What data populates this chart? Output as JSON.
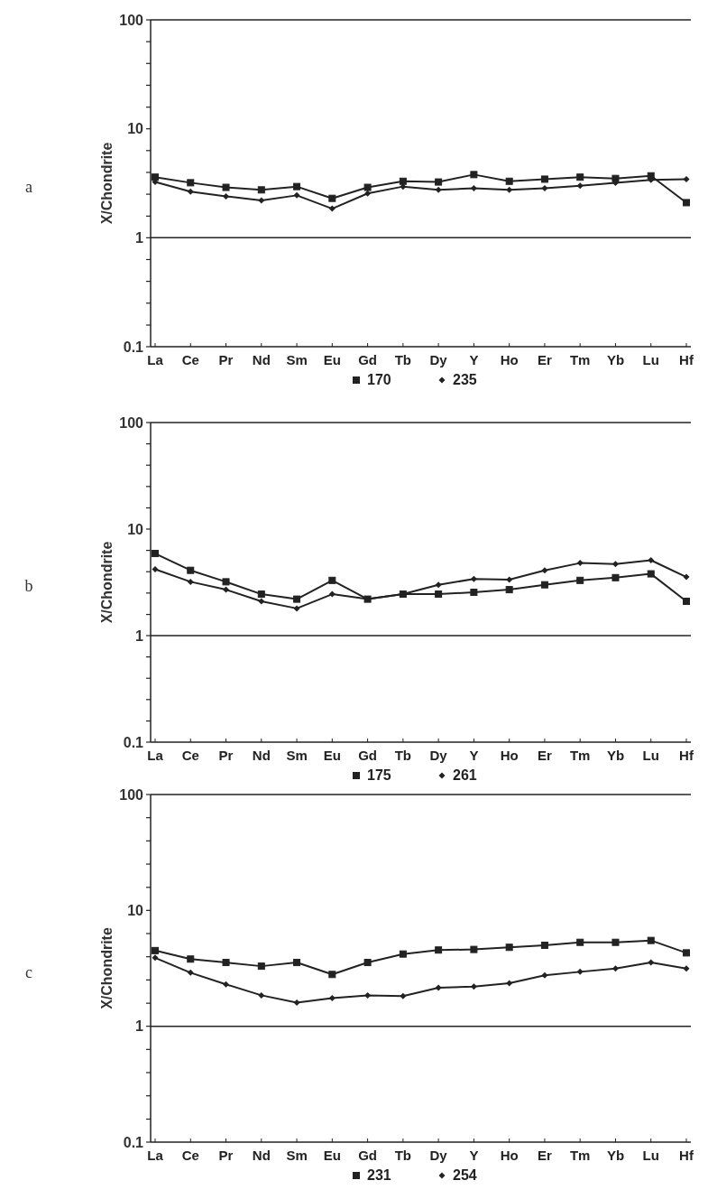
{
  "chart_data": [
    {
      "type": "line",
      "ylabel": "X/Chondrite",
      "annotations": [
        "a"
      ],
      "categories": [
        "La",
        "Ce",
        "Pr",
        "Nd",
        "Sm",
        "Eu",
        "Gd",
        "Tb",
        "Dy",
        "Y",
        "Ho",
        "Er",
        "Tm",
        "Yb",
        "Lu",
        "Hf"
      ],
      "log": true,
      "ylim": [
        0.1,
        100
      ],
      "yticks": [
        0.1,
        {
          "value": 0.158,
          "label": null
        },
        {
          "value": 0.251,
          "label": null
        },
        {
          "value": 0.398,
          "label": null
        },
        {
          "value": 0.631,
          "label": null
        },
        1,
        {
          "value": 1.58,
          "label": null
        },
        {
          "value": 2.51,
          "label": null
        },
        {
          "value": 3.98,
          "label": null
        },
        {
          "value": 6.31,
          "label": null
        },
        10,
        {
          "value": 15.8,
          "label": null
        },
        {
          "value": 25.1,
          "label": null
        },
        {
          "value": 39.8,
          "label": null
        },
        {
          "value": 63.1,
          "label": null
        },
        100
      ],
      "ref_lines": [
        {
          "axis": "y",
          "value": 1
        }
      ],
      "legend": "bottom",
      "series": [
        {
          "name": "170",
          "color": "#222222",
          "marker": "square",
          "values": [
            3.6,
            3.2,
            2.9,
            2.75,
            2.95,
            2.3,
            2.9,
            3.3,
            3.25,
            3.8,
            3.3,
            3.45,
            3.6,
            3.5,
            3.7,
            2.1
          ]
        },
        {
          "name": "235",
          "color": "#222222",
          "marker": "diamond",
          "values": [
            3.25,
            2.65,
            2.4,
            2.2,
            2.45,
            1.85,
            2.55,
            2.95,
            2.75,
            2.85,
            2.75,
            2.85,
            3.0,
            3.2,
            3.4,
            3.45
          ]
        }
      ]
    },
    {
      "type": "line",
      "ylabel": "X/Chondrite",
      "annotations": [
        "b"
      ],
      "categories": [
        "La",
        "Ce",
        "Pr",
        "Nd",
        "Sm",
        "Eu",
        "Gd",
        "Tb",
        "Dy",
        "Y",
        "Ho",
        "Er",
        "Tm",
        "Yb",
        "Lu",
        "Hf"
      ],
      "log": true,
      "ylim": [
        0.1,
        100
      ],
      "yticks": [
        0.1,
        {
          "value": 0.158,
          "label": null
        },
        {
          "value": 0.251,
          "label": null
        },
        {
          "value": 0.398,
          "label": null
        },
        {
          "value": 0.631,
          "label": null
        },
        1,
        {
          "value": 1.58,
          "label": null
        },
        {
          "value": 2.51,
          "label": null
        },
        {
          "value": 3.98,
          "label": null
        },
        {
          "value": 6.31,
          "label": null
        },
        10,
        {
          "value": 15.8,
          "label": null
        },
        {
          "value": 25.1,
          "label": null
        },
        {
          "value": 39.8,
          "label": null
        },
        {
          "value": 63.1,
          "label": null
        },
        100
      ],
      "ref_lines": [
        {
          "axis": "y",
          "value": 1
        }
      ],
      "legend": "bottom",
      "series": [
        {
          "name": "175",
          "color": "#222222",
          "marker": "square",
          "values": [
            5.9,
            4.1,
            3.2,
            2.45,
            2.2,
            3.3,
            2.2,
            2.45,
            2.45,
            2.55,
            2.7,
            3.0,
            3.3,
            3.5,
            3.8,
            2.1
          ]
        },
        {
          "name": "261",
          "color": "#222222",
          "marker": "diamond",
          "values": [
            4.2,
            3.2,
            2.7,
            2.1,
            1.8,
            2.45,
            2.2,
            2.45,
            3.0,
            3.4,
            3.35,
            4.1,
            4.8,
            4.7,
            5.1,
            3.55
          ]
        }
      ]
    },
    {
      "type": "line",
      "ylabel": "X/Chondrite",
      "annotations": [
        "c"
      ],
      "categories": [
        "La",
        "Ce",
        "Pr",
        "Nd",
        "Sm",
        "Eu",
        "Gd",
        "Tb",
        "Dy",
        "Y",
        "Ho",
        "Er",
        "Tm",
        "Yb",
        "Lu",
        "Hf"
      ],
      "log": true,
      "ylim": [
        0.1,
        100
      ],
      "yticks": [
        0.1,
        {
          "value": 0.158,
          "label": null
        },
        {
          "value": 0.251,
          "label": null
        },
        {
          "value": 0.398,
          "label": null
        },
        {
          "value": 0.631,
          "label": null
        },
        1,
        {
          "value": 1.58,
          "label": null
        },
        {
          "value": 2.51,
          "label": null
        },
        {
          "value": 3.98,
          "label": null
        },
        {
          "value": 6.31,
          "label": null
        },
        10,
        {
          "value": 15.8,
          "label": null
        },
        {
          "value": 25.1,
          "label": null
        },
        {
          "value": 39.8,
          "label": null
        },
        {
          "value": 63.1,
          "label": null
        },
        100
      ],
      "ref_lines": [
        {
          "axis": "y",
          "value": 1
        }
      ],
      "legend": "bottom",
      "series": [
        {
          "name": "231",
          "color": "#222222",
          "marker": "square",
          "values": [
            4.5,
            3.8,
            3.55,
            3.3,
            3.55,
            2.8,
            3.55,
            4.2,
            4.55,
            4.6,
            4.8,
            5.0,
            5.3,
            5.3,
            5.5,
            4.3
          ]
        },
        {
          "name": "254",
          "color": "#222222",
          "marker": "diamond",
          "values": [
            3.9,
            2.9,
            2.3,
            1.85,
            1.6,
            1.75,
            1.85,
            1.82,
            2.15,
            2.2,
            2.35,
            2.75,
            2.95,
            3.15,
            3.55,
            3.15
          ]
        }
      ]
    }
  ]
}
